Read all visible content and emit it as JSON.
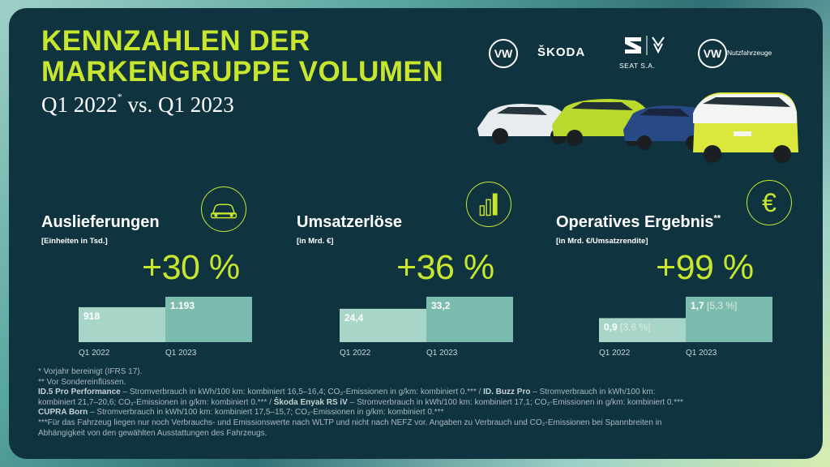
{
  "header": {
    "title_line1": "KENNZAHLEN DER",
    "title_line2": "MARKENGRUPPE VOLUMEN",
    "subtitle_a": "Q1 2022",
    "subtitle_mark": "*",
    "subtitle_b": " vs. Q1 2023"
  },
  "brands": {
    "vw": "VW",
    "skoda": "ŠKODA",
    "seat": "SEAT S.A.",
    "vw_nutz": "Nutzfahrzeuge"
  },
  "kpis": [
    {
      "title": "Auslieferungen",
      "title_mark": "",
      "unit": "[Einheiten in Tsd.]",
      "change": "+30 %",
      "icon": "car-front-icon"
    },
    {
      "title": "Umsatzerlöse",
      "title_mark": "",
      "unit": "[in Mrd. €]",
      "change": "+36 %",
      "icon": "bar-chart-icon"
    },
    {
      "title": "Operatives Ergebnis",
      "title_mark": "**",
      "unit": "[in Mrd. €/Umsatzrendite]",
      "change": "+99 %",
      "icon": "euro-icon"
    }
  ],
  "colors": {
    "accent": "#c8e62e",
    "card": "#0f3440",
    "bar_2022": "#a7d6c9",
    "bar_2023": "#7cbcae"
  },
  "chart_data": [
    {
      "type": "bar",
      "title": "Auslieferungen",
      "unit": "[Einheiten in Tsd.]",
      "categories": [
        "Q1 2022",
        "Q1 2023"
      ],
      "values": [
        918,
        1193
      ],
      "labels": [
        "918",
        "1.193"
      ],
      "label_suffix": [
        "",
        ""
      ],
      "change": "+30 %"
    },
    {
      "type": "bar",
      "title": "Umsatzerlöse",
      "unit": "[in Mrd. €]",
      "categories": [
        "Q1 2022",
        "Q1 2023"
      ],
      "values": [
        24.4,
        33.2
      ],
      "labels": [
        "24,4",
        "33,2"
      ],
      "label_suffix": [
        "",
        ""
      ],
      "change": "+36 %"
    },
    {
      "type": "bar",
      "title": "Operatives Ergebnis",
      "unit": "[in Mrd. €/Umsatzrendite]",
      "categories": [
        "Q1 2022",
        "Q1 2023"
      ],
      "values": [
        0.9,
        1.7
      ],
      "labels": [
        "0,9",
        "1,7"
      ],
      "label_suffix": [
        "[3,6 %]",
        "[5,3 %]"
      ],
      "change": "+99 %"
    }
  ],
  "footnotes": {
    "line1": "* Vorjahr bereinigt (IFRS 17).",
    "line2": "** Vor Sondereinflüssen.",
    "line3_b1": "ID.5 Pro Performance",
    "line3_t1": " – Stromverbrauch in kWh/100 km: kombiniert 16,5–16,4; CO₂-Emissionen in g/km: kombiniert 0.*** / ",
    "line3_b2": "ID. Buzz Pro",
    "line3_t2": " – Stromverbrauch in kWh/100 km:",
    "line4_t1": "kombiniert 21,7–20,6; CO₂-Emissionen in g/km: kombiniert 0.*** / ",
    "line4_b1": "Škoda Enyak RS iV",
    "line4_t2": " – Stromverbrauch in kWh/100 km: kombiniert 17,1; CO₂-Emissionen in g/km: kombiniert 0.***",
    "line5_b1": "CUPRA Born",
    "line5_t1": " – Stromverbrauch in kWh/100 km: kombiniert 17,5–15,7; CO₂-Emissionen in g/km: kombiniert 0.***",
    "line6": "***Für das Fahrzeug liegen nur noch Verbrauchs- und Emissionswerte nach WLTP und nicht nach NEFZ vor. Angaben zu Verbrauch und CO₂-Emissionen bei Spannbreiten in",
    "line7": "Abhängigkeit von den gewählten Ausstattungen des Fahrzeugs."
  }
}
